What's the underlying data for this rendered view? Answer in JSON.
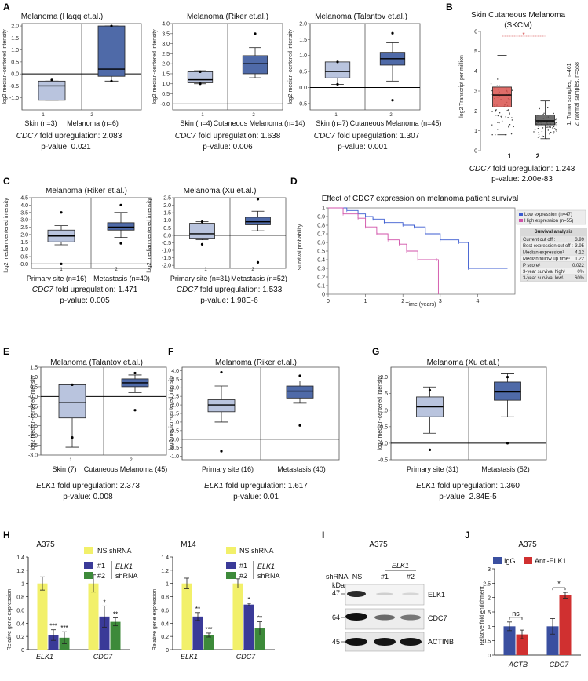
{
  "colors": {
    "light_box": "#b9c4de",
    "dark_box": "#4f6aa8",
    "yellow": "#f2f06a",
    "navy": "#3a3a98",
    "green": "#3d8a3a",
    "igg": "#3a4fa0",
    "anti": "#d03030",
    "tumor": "#d9534f",
    "normal": "#555555"
  },
  "panels": {
    "A": {
      "label": "A",
      "plots": [
        {
          "title": "Melanoma (Haqq et.al.)",
          "ylabel": "log2 median-centered intensity",
          "categories": [
            "Skin (n=3)",
            "Melanoma (n=6)"
          ],
          "index_labels": [
            "1",
            "2"
          ],
          "gene": "CDC7",
          "fc_text": " fold upregulation: 2.083",
          "p_text": "p-value: 0.021"
        },
        {
          "title": "Melanoma (Riker et.al.)",
          "ylabel": "log2 median-centered intensity",
          "categories": [
            "Skin (n=4)",
            "Cutaneous Melanoma (n=14)"
          ],
          "index_labels": [
            "1",
            "2"
          ],
          "gene": "CDC7",
          "fc_text": " fold upregulation: 1.638",
          "p_text": "p-value: 0.006"
        },
        {
          "title": "Melanoma (Talantov et.al.)",
          "ylabel": "log2 median-centered intensity",
          "categories": [
            "Skin (n=7)",
            "Cutaneous Melanoma (n=45)"
          ],
          "index_labels": [
            "1",
            "2"
          ],
          "gene": "CDC7",
          "fc_text": " fold upregulation: 1.307",
          "p_text": "p-value: 0.001"
        }
      ]
    },
    "B": {
      "label": "B",
      "title": "Skin Cutaneous Melanoma",
      "subtitle": "(SKCM)",
      "ylabel": "log2 Transcript per million",
      "legend": [
        "1: Tumor samples, n=461",
        "2: Normal samples, n=558"
      ],
      "categories": [
        "1",
        "2"
      ],
      "star": "*",
      "gene": "CDC7",
      "fc_text": " fold upregulation: 1.243",
      "p_text": "p-value: 2.00e-83"
    },
    "C": {
      "label": "C",
      "plots": [
        {
          "title": "Melanoma (Riker et.al.)",
          "ylabel": "log2 median-centered intensity",
          "categories": [
            "Primary site (n=16)",
            "Metastasis (n=40)"
          ],
          "index_labels": [
            "1",
            "2"
          ],
          "gene": "CDC7",
          "fc_text": " fold upregulation: 1.471",
          "p_text": "p-value: 0.005"
        },
        {
          "title": "Melanoma (Xu et.al.)",
          "ylabel": "log2 median-centered intensity",
          "categories": [
            "Primary site (n=31)",
            "Metastasis (n=52)"
          ],
          "index_labels": [
            "1",
            "2"
          ],
          "gene": "CDC7",
          "fc_text": " fold upregulation: 1.533",
          "p_text": "p-value: 1.98E-6"
        }
      ]
    },
    "D": {
      "label": "D",
      "title": "Effect of CDC7 expression on melanoma patient survival",
      "xlabel": "Time (years)",
      "ylabel": "Survival probability",
      "legend": [
        "Low expression (n=47)",
        "High expression (n=55)"
      ],
      "table_title": "Survival analysis",
      "table": [
        [
          "Current cut off :",
          "3.99"
        ],
        [
          "Best expression cut off :",
          "3.95"
        ],
        [
          "Median expression¹",
          "4.12"
        ],
        [
          "Median follow up time¹",
          "1.22"
        ],
        [
          "P score¹",
          "0.022"
        ],
        [
          "3-year survival high¹",
          "0%"
        ],
        [
          "3-year survival low¹",
          "60%"
        ]
      ]
    },
    "E": {
      "label": "E",
      "title": "Melanoma (Talantov et.al.)",
      "ylabel": "log2 median-centered intensity",
      "categories": [
        "Skin (7)",
        "Cutaneous Melanoma (45)"
      ],
      "index_labels": [
        "1",
        "2"
      ],
      "gene": "ELK1",
      "fc_text": " fold upregulation: 2.373",
      "p_text": "p-value: 0.008"
    },
    "F": {
      "label": "F",
      "title": "Melanoma (Riker et.al.)",
      "ylabel": "log2 median-centered intensity",
      "categories": [
        "Primary site (16)",
        "Metastasis (40)"
      ],
      "gene": "ELK1",
      "fc_text": " fold upregulation: 1.617",
      "p_text": "p-value: 0.01"
    },
    "G": {
      "label": "G",
      "title": "Melanoma (Xu et.al.)",
      "ylabel": "log2 median-centered intensity",
      "categories": [
        "Primary site (31)",
        "Metastasis (52)"
      ],
      "gene": "ELK1",
      "fc_text": " fold upregulation: 1.360",
      "p_text": "p-value: 2.84E-5"
    },
    "H": {
      "label": "H",
      "plots": [
        {
          "title": "A375",
          "ylabel": "Relative gene expression",
          "legend_ns": "NS shRNA",
          "legend_1": "#1",
          "legend_2": "#2",
          "legend_gene": "ELK1",
          "legend_sh": "shRNA",
          "categories": [
            "ELK1",
            "CDC7"
          ]
        },
        {
          "title": "M14",
          "ylabel": "Relative gene expression",
          "legend_ns": "NS shRNA",
          "legend_1": "#1",
          "legend_2": "#2",
          "legend_gene": "ELK1",
          "legend_sh": "shRNA",
          "categories": [
            "ELK1",
            "CDC7"
          ]
        }
      ]
    },
    "I": {
      "label": "I",
      "title": "A375",
      "shrna_label": "shRNA",
      "kda_label": "kDa",
      "lanes": [
        "NS",
        "#1",
        "#2"
      ],
      "gene": "ELK1",
      "bands": [
        {
          "kda": "47",
          "name": "ELK1"
        },
        {
          "kda": "64",
          "name": "CDC7"
        },
        {
          "kda": "45",
          "name": "ACTINB"
        }
      ]
    },
    "J": {
      "label": "J",
      "title": "A375",
      "ylabel": "Relative fold enrichment",
      "legend": [
        "IgG",
        "Anti-ELK1"
      ],
      "categories": [
        "ACTB",
        "CDC7"
      ],
      "sig": [
        "ns",
        "*"
      ]
    }
  },
  "chart_data": [
    {
      "id": "A1",
      "type": "box",
      "title": "Melanoma (Haqq et.al.)",
      "categories": [
        "Skin (n=3)",
        "Melanoma (n=6)"
      ],
      "ylim": [
        -1.5,
        2.1
      ],
      "yticks": [
        -1.0,
        -0.5,
        0.0,
        0.5,
        1.0,
        1.5,
        2.0
      ],
      "tick_labels": [],
      "baseline": 0,
      "boxes": [
        {
          "min": -1.1,
          "q1": -1.1,
          "median": -0.5,
          "q3": -0.3,
          "max": -0.3,
          "outliers": [
            -0.25
          ],
          "color": "light"
        },
        {
          "min": -0.3,
          "q1": -0.1,
          "median": 0.2,
          "q3": 2.0,
          "max": 2.0,
          "outliers": [
            2.0,
            -0.3
          ],
          "color": "dark"
        }
      ]
    },
    {
      "id": "A2",
      "type": "box",
      "title": "Melanoma (Riker et.al.)",
      "categories": [
        "Skin (n=4)",
        "Cutaneous Melanoma (n=14)"
      ],
      "ylim": [
        -0.3,
        4.0
      ],
      "yticks": [
        0,
        0.5,
        1.0,
        1.5,
        2.0,
        2.5,
        3.0,
        3.5,
        4.0
      ],
      "tick_labels": [
        "-0.0",
        "0.5",
        "1.0",
        "1.5",
        "2.0",
        "2.5",
        "3.0",
        "3.5",
        "4.0"
      ],
      "baseline": 0,
      "boxes": [
        {
          "min": 1.0,
          "q1": 1.05,
          "median": 1.2,
          "q3": 1.6,
          "max": 1.65,
          "outliers": [
            1.0,
            1.6
          ],
          "color": "light"
        },
        {
          "min": 1.3,
          "q1": 1.5,
          "median": 2.0,
          "q3": 2.4,
          "max": 2.8,
          "outliers": [
            3.5
          ],
          "color": "dark"
        }
      ]
    },
    {
      "id": "A3",
      "type": "box",
      "title": "Melanoma (Talantov et.al.)",
      "categories": [
        "Skin (n=7)",
        "Cutaneous Melanoma (n=45)"
      ],
      "ylim": [
        -0.7,
        2.0
      ],
      "yticks": [
        -0.5,
        0.0,
        0.5,
        1.0,
        1.5,
        2.0
      ],
      "tick_labels": [],
      "baseline": 0,
      "boxes": [
        {
          "min": 0.1,
          "q1": 0.3,
          "median": 0.5,
          "q3": 0.8,
          "max": 0.8,
          "outliers": [
            0.8,
            0.1
          ],
          "color": "light"
        },
        {
          "min": 0.2,
          "q1": 0.7,
          "median": 0.9,
          "q3": 1.1,
          "max": 1.4,
          "outliers": [
            1.7,
            -0.4
          ],
          "color": "dark"
        }
      ]
    },
    {
      "id": "B",
      "type": "box",
      "title": "Skin Cutaneous Melanoma (SKCM)",
      "categories": [
        "1",
        "2"
      ],
      "ylim": [
        0,
        6
      ],
      "yticks": [
        0,
        1,
        2,
        3,
        4,
        5,
        6
      ],
      "tick_labels": [],
      "boxes": [
        {
          "min": 0.8,
          "q1": 2.2,
          "median": 2.8,
          "q3": 3.2,
          "max": 4.8,
          "color": "tumor"
        },
        {
          "min": 0.6,
          "q1": 1.3,
          "median": 1.5,
          "q3": 1.8,
          "max": 2.5,
          "color": "normal"
        }
      ]
    },
    {
      "id": "C1",
      "type": "box",
      "title": "Melanoma (Riker et.al.)",
      "categories": [
        "Primary site (n=16)",
        "Metastasis (n=40)"
      ],
      "ylim": [
        -0.3,
        4.5
      ],
      "yticks": [
        0,
        0.5,
        1.0,
        1.5,
        2.0,
        2.5,
        3.0,
        3.5,
        4.0,
        4.5
      ],
      "tick_labels": [
        "-0.0",
        "0.5",
        "1.0",
        "1.5",
        "2.0",
        "2.5",
        "3.0",
        "3.5",
        "4.0",
        "4.5"
      ],
      "baseline": 0,
      "boxes": [
        {
          "min": 1.3,
          "q1": 1.5,
          "median": 1.9,
          "q3": 2.3,
          "max": 2.6,
          "outliers": [
            3.5,
            0.0
          ],
          "color": "light"
        },
        {
          "min": 1.8,
          "q1": 2.3,
          "median": 2.5,
          "q3": 2.8,
          "max": 3.5,
          "outliers": [
            4.0,
            1.4
          ],
          "color": "dark"
        }
      ]
    },
    {
      "id": "C2",
      "type": "box",
      "title": "Melanoma (Xu et.al.)",
      "categories": [
        "Primary site (n=31)",
        "Metastasis (n=52)"
      ],
      "ylim": [
        -2.2,
        2.5
      ],
      "yticks": [
        -2.0,
        -1.5,
        -1.0,
        -0.5,
        0.0,
        0.5,
        1.0,
        1.5,
        2.0,
        2.5
      ],
      "tick_labels": [],
      "baseline": 0,
      "boxes": [
        {
          "min": -0.3,
          "q1": -0.2,
          "median": 0.1,
          "q3": 0.8,
          "max": 0.9,
          "outliers": [
            0.9,
            -0.6
          ],
          "color": "light"
        },
        {
          "min": 0.3,
          "q1": 0.7,
          "median": 0.9,
          "q3": 1.2,
          "max": 1.6,
          "outliers": [
            2.4,
            -1.8
          ],
          "color": "dark"
        }
      ]
    },
    {
      "id": "D",
      "type": "line",
      "title": "Effect of CDC7 expression on melanoma patient survival",
      "xlabel": "Time (years)",
      "ylabel": "Survival probability",
      "xlim": [
        0,
        5
      ],
      "xticks": [
        0,
        1,
        2,
        3,
        4
      ],
      "ylim": [
        0,
        1
      ],
      "yticks": [
        0,
        0.1,
        0.2,
        0.3,
        0.4,
        0.5,
        0.6,
        0.7,
        0.8,
        0.9,
        1.0
      ],
      "series": [
        {
          "name": "Low expression (n=47)",
          "color": "#3b5bd0",
          "x": [
            0,
            0.5,
            0.8,
            1.0,
            1.2,
            1.5,
            2.0,
            2.3,
            2.6,
            3.0,
            3.5,
            3.75,
            4.8
          ],
          "y": [
            1.0,
            0.97,
            0.93,
            0.9,
            0.87,
            0.83,
            0.8,
            0.78,
            0.7,
            0.63,
            0.6,
            0.3,
            0.3
          ]
        },
        {
          "name": "High expression (n=55)",
          "color": "#d050a8",
          "x": [
            0,
            0.4,
            0.8,
            1.0,
            1.3,
            1.6,
            1.9,
            2.1,
            2.4,
            2.9,
            2.95
          ],
          "y": [
            1.0,
            0.93,
            0.88,
            0.78,
            0.7,
            0.63,
            0.58,
            0.5,
            0.4,
            0.4,
            0.0
          ]
        }
      ]
    },
    {
      "id": "E",
      "type": "box",
      "title": "Melanoma (Talantov et.al.)",
      "categories": [
        "Skin (7)",
        "Cutaneous Melanoma (45)"
      ],
      "ylim": [
        -3.0,
        1.5
      ],
      "yticks": [
        -3.0,
        -2.5,
        -2.0,
        -1.5,
        -1.0,
        -0.5,
        0.0,
        0.5,
        1.0,
        1.5
      ],
      "tick_labels": [
        "-3.0",
        "-2.5",
        "-2.0",
        "-1.5",
        "-1.0",
        "-0.5",
        "-0.0",
        "0.5",
        "1.0",
        "1.5"
      ],
      "baseline": 0,
      "boxes": [
        {
          "min": -2.6,
          "q1": -1.1,
          "median": -0.3,
          "q3": 0.6,
          "max": 0.6,
          "outliers": [
            0.6,
            -2.1
          ],
          "color": "light"
        },
        {
          "min": 0.2,
          "q1": 0.5,
          "median": 0.7,
          "q3": 0.9,
          "max": 1.1,
          "outliers": [
            1.2,
            -0.7
          ],
          "color": "dark"
        }
      ]
    },
    {
      "id": "F",
      "type": "box",
      "title": "Melanoma (Riker et.al.)",
      "categories": [
        "Primary site (16)",
        "Metastasis (40)"
      ],
      "ylim": [
        -1.2,
        4.2
      ],
      "yticks": [
        -1.0,
        -0.5,
        0.0,
        0.5,
        1.0,
        1.5,
        2.0,
        2.5,
        3.0,
        3.5,
        4.0
      ],
      "tick_labels": [
        "-1.0",
        "-0.5",
        "-0.0",
        "0.5",
        "1.0",
        "1.5",
        "2.0",
        "2.5",
        "3.0",
        "3.5",
        "4.0"
      ],
      "baseline": 0,
      "boxes": [
        {
          "min": 1.0,
          "q1": 1.6,
          "median": 2.0,
          "q3": 2.3,
          "max": 3.1,
          "outliers": [
            3.9,
            -0.7
          ],
          "color": "light"
        },
        {
          "min": 2.1,
          "q1": 2.4,
          "median": 2.8,
          "q3": 3.1,
          "max": 3.4,
          "outliers": [
            3.7,
            0.8
          ],
          "color": "dark"
        }
      ]
    },
    {
      "id": "G",
      "type": "box",
      "title": "Melanoma (Xu et.al.)",
      "categories": [
        "Primary site (31)",
        "Metastasis (52)"
      ],
      "ylim": [
        -0.5,
        2.3
      ],
      "yticks": [
        -0.5,
        0.0,
        0.5,
        1.0,
        1.5,
        2.0
      ],
      "tick_labels": [],
      "baseline": 0,
      "boxes": [
        {
          "min": 0.3,
          "q1": 0.8,
          "median": 1.1,
          "q3": 1.4,
          "max": 1.7,
          "outliers": [
            1.6,
            -0.2
          ],
          "color": "light"
        },
        {
          "min": 0.8,
          "q1": 1.3,
          "median": 1.55,
          "q3": 1.85,
          "max": 2.1,
          "outliers": [
            2.0,
            0.0
          ],
          "color": "dark"
        }
      ]
    },
    {
      "id": "H1",
      "type": "bar",
      "title": "A375",
      "ylabel": "Relative gene expression",
      "categories": [
        "ELK1",
        "CDC7"
      ],
      "ylim": [
        0,
        1.4
      ],
      "yticks": [
        0,
        0.2,
        0.4,
        0.6,
        0.8,
        1.0,
        1.2,
        1.4
      ],
      "tick_labels": [
        "0",
        "0.2",
        "0.4",
        "0.6",
        "0.8",
        "1",
        "1.2",
        "1.4"
      ],
      "series": [
        {
          "name": "NS shRNA",
          "values": [
            1.0,
            1.0
          ],
          "errors": [
            0.1,
            0.13
          ],
          "sig": [
            "",
            ""
          ]
        },
        {
          "name": "#1",
          "values": [
            0.22,
            0.5
          ],
          "errors": [
            0.08,
            0.16
          ],
          "sig": [
            "***",
            "*"
          ]
        },
        {
          "name": "#2",
          "values": [
            0.18,
            0.42
          ],
          "errors": [
            0.09,
            0.06
          ],
          "sig": [
            "***",
            "**"
          ]
        }
      ]
    },
    {
      "id": "H2",
      "type": "bar",
      "title": "M14",
      "ylabel": "Relative gene expression",
      "categories": [
        "ELK1",
        "CDC7"
      ],
      "ylim": [
        0,
        1.4
      ],
      "yticks": [
        0,
        0.2,
        0.4,
        0.6,
        0.8,
        1.0,
        1.2,
        1.4
      ],
      "tick_labels": [
        "0",
        "0.2",
        "0.4",
        "0.6",
        "0.8",
        "1",
        "1.2",
        "1.4"
      ],
      "series": [
        {
          "name": "NS shRNA",
          "values": [
            1.0,
            1.0
          ],
          "errors": [
            0.08,
            0.07
          ],
          "sig": [
            "",
            ""
          ]
        },
        {
          "name": "#1",
          "values": [
            0.5,
            0.68
          ],
          "errors": [
            0.06,
            0.02
          ],
          "sig": [
            "**",
            "*"
          ]
        },
        {
          "name": "#2",
          "values": [
            0.22,
            0.32
          ],
          "errors": [
            0.03,
            0.1
          ],
          "sig": [
            "***",
            "**"
          ]
        }
      ]
    },
    {
      "id": "J",
      "type": "bar",
      "title": "A375",
      "ylabel": "Relative fold enrichment",
      "categories": [
        "ACTB",
        "CDC7"
      ],
      "ylim": [
        0,
        3
      ],
      "yticks": [
        0,
        0.5,
        1.0,
        1.5,
        2.0,
        2.5,
        3.0
      ],
      "tick_labels": [
        "0",
        "0.5",
        "1",
        "1.5",
        "2",
        "2.5",
        "3"
      ],
      "series": [
        {
          "name": "IgG",
          "values": [
            1.0,
            1.0
          ],
          "errors": [
            0.15,
            0.27
          ],
          "sig": [
            "",
            ""
          ]
        },
        {
          "name": "Anti-ELK1",
          "values": [
            0.72,
            2.08
          ],
          "errors": [
            0.15,
            0.1
          ],
          "sig": [
            "",
            ""
          ]
        }
      ],
      "pair_sig": [
        "ns",
        "*"
      ]
    }
  ]
}
